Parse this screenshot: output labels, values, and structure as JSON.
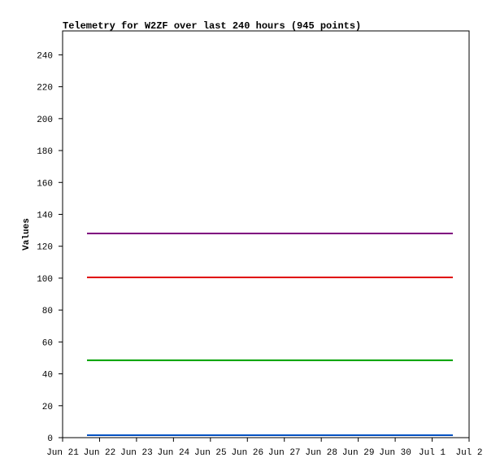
{
  "chart_data": {
    "type": "line",
    "title": "Telemetry for W2ZF over last 240 hours (945 points)",
    "y_label": "Values",
    "x": [
      0.66,
      10.56
    ],
    "xlim": [
      0,
      11
    ],
    "xticks": [
      {
        "value": 0,
        "label": "Jun 21"
      },
      {
        "value": 1,
        "label": "Jun 22"
      },
      {
        "value": 2,
        "label": "Jun 23"
      },
      {
        "value": 3,
        "label": "Jun 24"
      },
      {
        "value": 4,
        "label": "Jun 25"
      },
      {
        "value": 5,
        "label": "Jun 26"
      },
      {
        "value": 6,
        "label": "Jun 27"
      },
      {
        "value": 7,
        "label": "Jun 28"
      },
      {
        "value": 8,
        "label": "Jun 29"
      },
      {
        "value": 9,
        "label": "Jun 30"
      },
      {
        "value": 10,
        "label": "Jul 1"
      },
      {
        "value": 11,
        "label": "Jul 2"
      }
    ],
    "ylim": [
      0,
      255
    ],
    "yticks": [
      0,
      20,
      40,
      60,
      80,
      100,
      120,
      140,
      160,
      180,
      200,
      220,
      240
    ],
    "series": [
      {
        "color": "#800080",
        "values": [
          128,
          128
        ]
      },
      {
        "color": "#e00000",
        "values": [
          100.5,
          100.5
        ]
      },
      {
        "color": "#00a000",
        "values": [
          48.5,
          48.5
        ]
      },
      {
        "color": "#0050c0",
        "values": [
          1.5,
          1.5
        ]
      }
    ]
  }
}
